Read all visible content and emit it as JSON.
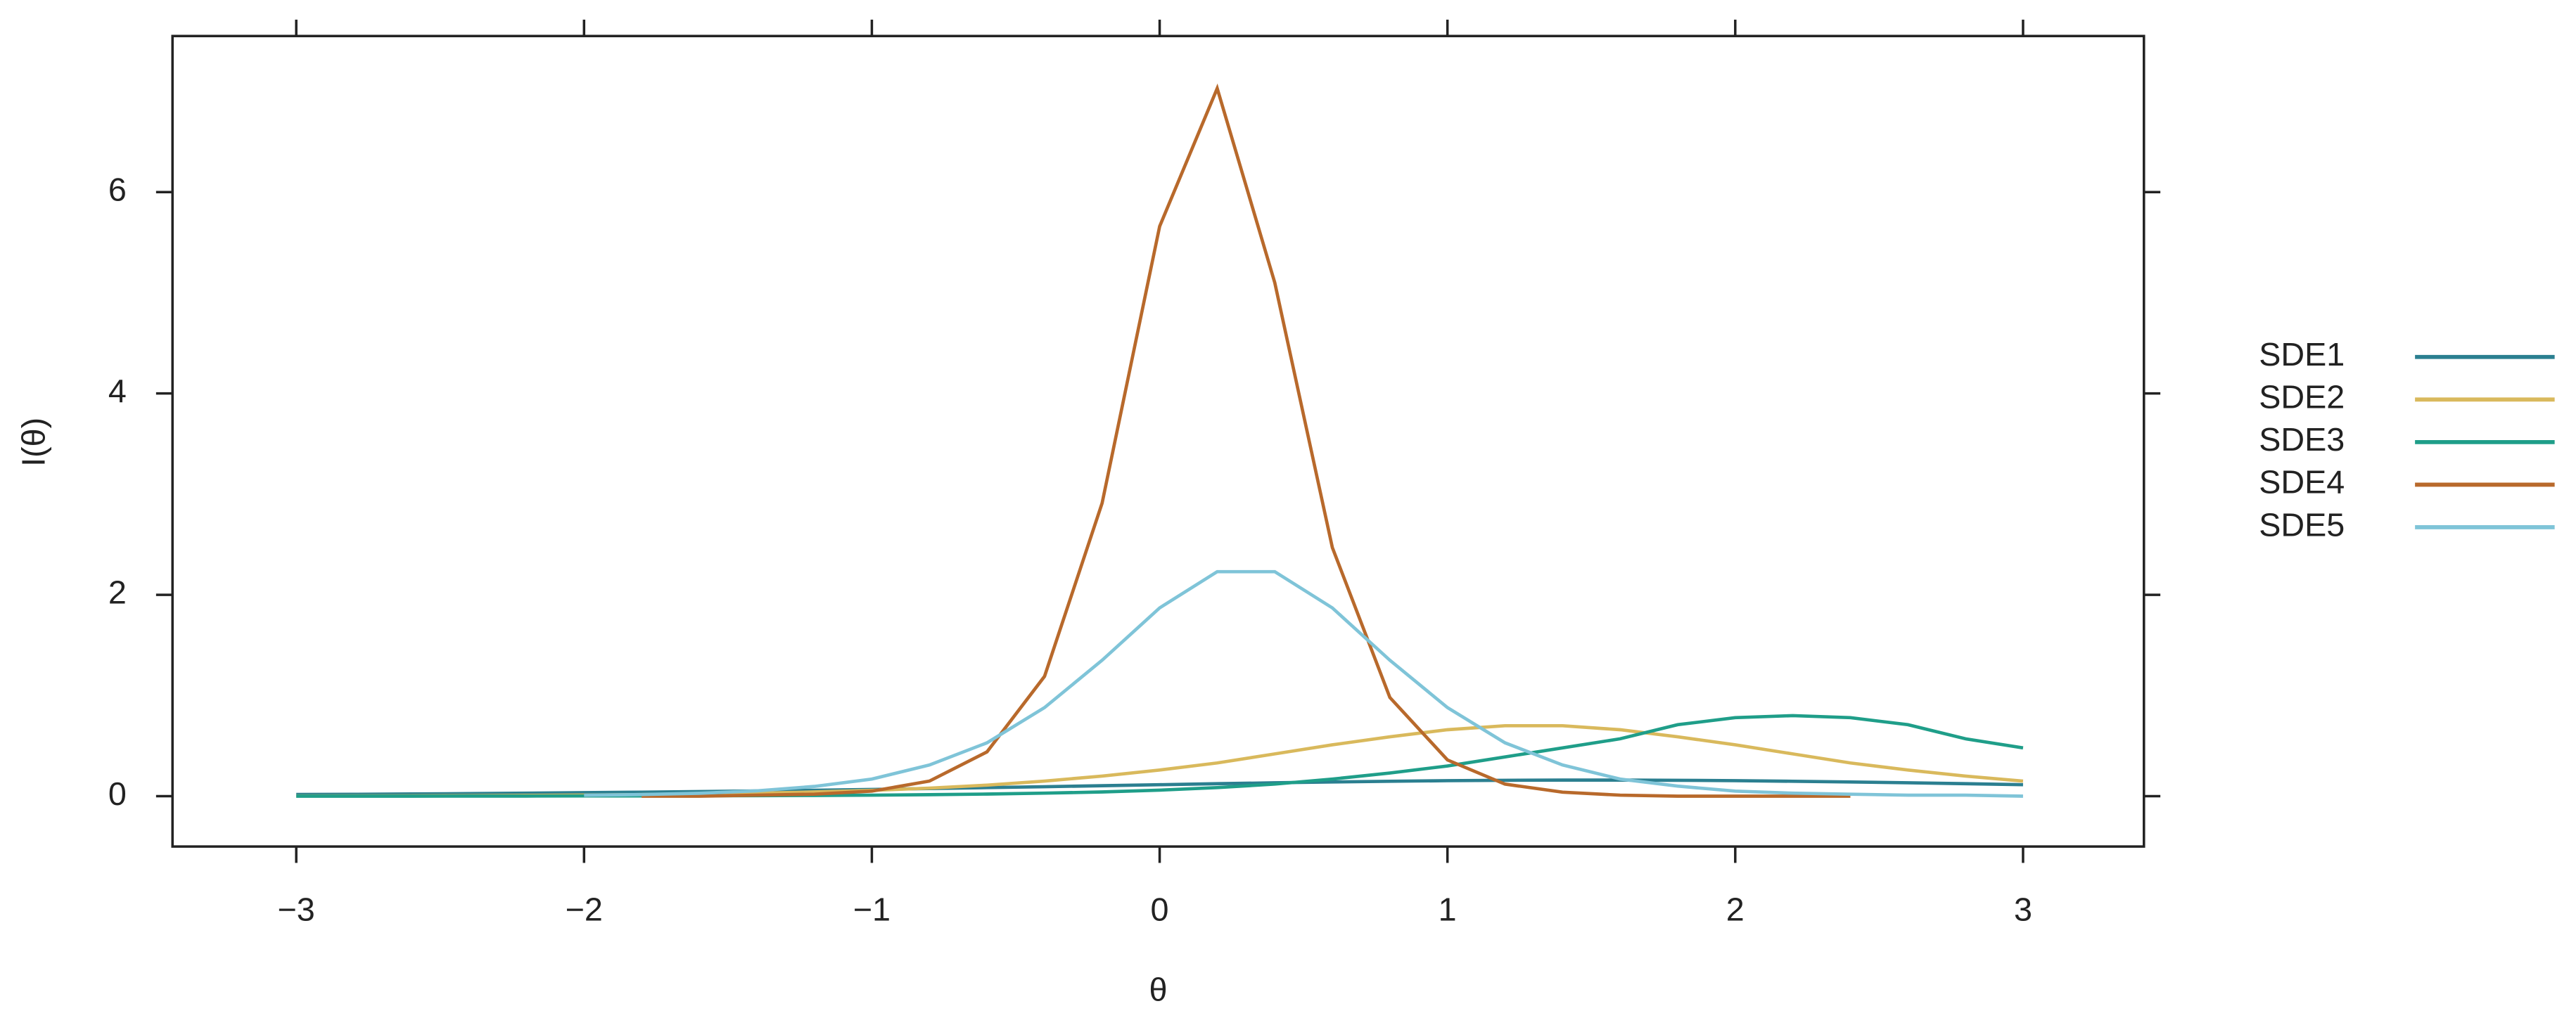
{
  "chart_data": {
    "type": "line",
    "x_label": "θ",
    "y_label": "I(θ)",
    "xlim": [
      -3.43,
      3.42
    ],
    "ylim": [
      -0.5,
      7.55
    ],
    "xticks": [
      {
        "value": -3,
        "label": "−3"
      },
      {
        "value": -2,
        "label": "−2"
      },
      {
        "value": -1,
        "label": "−1"
      },
      0,
      1,
      2,
      3
    ],
    "yticks": [
      0,
      2,
      4,
      6
    ],
    "grid": false,
    "legend": "right",
    "x": [
      -3,
      -2.8,
      -2.6,
      -2.4,
      -2.2,
      -2,
      -1.8,
      -1.6,
      -1.4,
      -1.2,
      -1,
      -0.8,
      -0.6,
      -0.4,
      -0.2,
      0,
      0.2,
      0.4,
      0.6,
      0.8,
      1,
      1.2,
      1.4,
      1.6,
      1.8,
      2,
      2.2,
      2.4,
      2.6,
      2.8,
      3
    ],
    "series": [
      {
        "name": "SDE1",
        "color": "#2b7f90",
        "values": [
          0.017,
          0.019,
          0.022,
          0.026,
          0.03,
          0.035,
          0.04,
          0.046,
          0.052,
          0.059,
          0.067,
          0.076,
          0.085,
          0.094,
          0.104,
          0.114,
          0.124,
          0.133,
          0.141,
          0.148,
          0.154,
          0.158,
          0.16,
          0.16,
          0.158,
          0.154,
          0.148,
          0.141,
          0.133,
          0.124,
          0.114
        ]
      },
      {
        "name": "SDE2",
        "color": "#d9b95c",
        "values": [
          0.002,
          0.003,
          0.004,
          0.006,
          0.008,
          0.011,
          0.016,
          0.022,
          0.03,
          0.042,
          0.058,
          0.08,
          0.11,
          0.15,
          0.2,
          0.26,
          0.33,
          0.42,
          0.51,
          0.59,
          0.66,
          0.7,
          0.7,
          0.66,
          0.59,
          0.51,
          0.42,
          0.33,
          0.26,
          0.2,
          0.15
        ]
      },
      {
        "name": "SDE3",
        "color": "#1f9e89",
        "values": [
          0,
          0,
          0,
          0.001,
          0.001,
          0.002,
          0.002,
          0.004,
          0.005,
          0.007,
          0.01,
          0.015,
          0.021,
          0.03,
          0.042,
          0.06,
          0.085,
          0.12,
          0.17,
          0.23,
          0.3,
          0.39,
          0.48,
          0.57,
          0.71,
          0.78,
          0.8,
          0.78,
          0.71,
          0.57,
          0.48
        ]
      },
      {
        "name": "SDE4",
        "color": "#b8692b",
        "values": [
          null,
          null,
          null,
          null,
          null,
          null,
          0,
          0,
          0.01,
          0.02,
          0.05,
          0.15,
          0.44,
          1.19,
          2.91,
          5.66,
          7.03,
          5.1,
          2.47,
          0.98,
          0.36,
          0.12,
          0.04,
          0.01,
          0,
          0,
          0,
          0,
          null,
          null,
          null
        ]
      },
      {
        "name": "SDE5",
        "color": "#7fc4d8",
        "values": [
          null,
          null,
          null,
          null,
          null,
          0.009,
          0.016,
          0.029,
          0.053,
          0.097,
          0.17,
          0.31,
          0.53,
          0.88,
          1.35,
          1.87,
          2.23,
          2.23,
          1.87,
          1.35,
          0.88,
          0.53,
          0.31,
          0.17,
          0.1,
          0.05,
          0.03,
          0.02,
          0.01,
          0.01,
          0
        ]
      }
    ]
  }
}
